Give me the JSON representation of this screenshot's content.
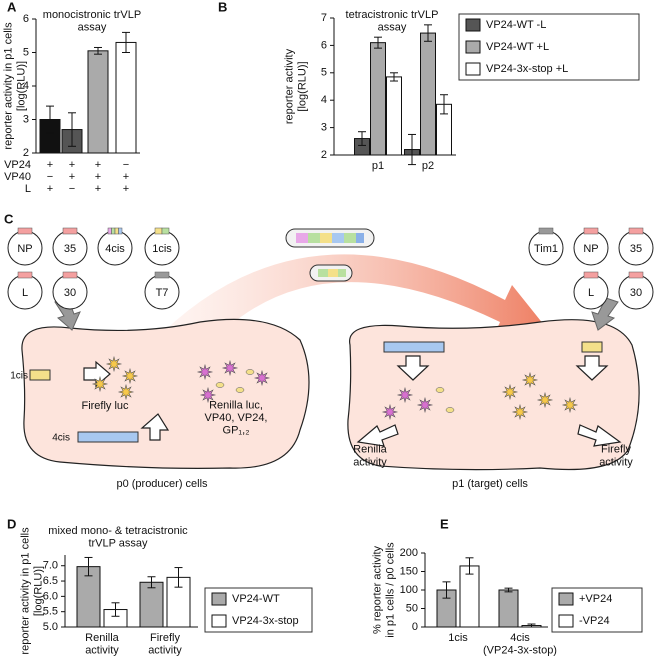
{
  "panels": [
    "A",
    "B",
    "C",
    "D",
    "E"
  ],
  "chart_data": [
    {
      "type": "bar",
      "title": "monocistronic trVLP\nassay",
      "ylabel": "reporter activity in p1 cells\n[log(RLU)]",
      "values": [
        3.0,
        2.7,
        5.05,
        5.3
      ],
      "errors": [
        0.4,
        0.5,
        0.1,
        0.3
      ],
      "colors": [
        "#111111",
        "#555555",
        "#aaaaaa",
        "#ffffff"
      ],
      "conditions": {
        "rows": [
          "VP24",
          "VP40",
          "L"
        ],
        "values": [
          [
            "+",
            "+",
            "+",
            "−"
          ],
          [
            "−",
            "+",
            "+",
            "+"
          ],
          [
            "+",
            "−",
            "+",
            "+"
          ]
        ]
      },
      "ylim": [
        2,
        6
      ],
      "yticks": [
        2,
        3,
        4,
        5,
        6
      ]
    },
    {
      "type": "grouped_bar",
      "title": "tetracistronic trVLP\nassay",
      "ylabel": "reporter activity\n[log(RLU)]",
      "categories": [
        "p1",
        "p2"
      ],
      "series": [
        {
          "name": "VP24-WT -L",
          "color": "#555555",
          "values": [
            2.6,
            2.2
          ],
          "errors": [
            0.25,
            0.55
          ]
        },
        {
          "name": "VP24-WT +L",
          "color": "#aaaaaa",
          "values": [
            6.1,
            6.45
          ],
          "errors": [
            0.2,
            0.3
          ]
        },
        {
          "name": "VP24-3x-stop +L",
          "color": "#ffffff",
          "values": [
            4.85,
            3.85
          ],
          "errors": [
            0.15,
            0.35
          ]
        }
      ],
      "ylim": [
        2,
        7
      ],
      "yticks": [
        2,
        3,
        4,
        5,
        6,
        7
      ],
      "legend": "right"
    },
    {
      "type": "grouped_bar",
      "title": "mixed mono- & tetracistronic\ntrVLP assay",
      "ylabel": "reporter activity in p1 cells\n[log(RLU)]",
      "categories": [
        "Renilla\nactivity",
        "Firefly\nactivity"
      ],
      "series": [
        {
          "name": "VP24-WT",
          "color": "#aaaaaa",
          "values": [
            6.97,
            6.46
          ],
          "errors": [
            0.3,
            0.18
          ]
        },
        {
          "name": "VP24-3x-stop",
          "color": "#ffffff",
          "values": [
            5.57,
            6.62
          ],
          "errors": [
            0.22,
            0.32
          ]
        }
      ],
      "ylim": [
        5.0,
        7.35
      ],
      "yticks": [
        {
          "value": 5,
          "label": "5.0"
        },
        5.5,
        {
          "value": 6,
          "label": "6.0"
        },
        6.5,
        {
          "value": 7,
          "label": "7.0"
        }
      ],
      "legend": "right"
    },
    {
      "type": "grouped_bar",
      "ylabel": "% reporter activity\nin p1 cells / p0 cells",
      "categories": [
        "1cis",
        "4cis\n(VP24-3x-stop)"
      ],
      "series": [
        {
          "name": "+VP24",
          "color": "#aaaaaa",
          "values": [
            100,
            100
          ],
          "errors": [
            22,
            5
          ]
        },
        {
          "name": "-VP24",
          "color": "#ffffff",
          "values": [
            165,
            4
          ],
          "errors": [
            22,
            4
          ]
        }
      ],
      "ylim": [
        0,
        200
      ],
      "yticks": [
        0,
        50,
        100,
        150,
        200
      ],
      "legend": "right"
    }
  ],
  "diagram": {
    "plasmids_left": [
      "NP",
      "35",
      "4cis",
      "1cis",
      "L",
      "30",
      "T7"
    ],
    "plasmids_right": [
      "Tim1",
      "NP",
      "35",
      "L",
      "30"
    ],
    "construct_1cis": "1cis",
    "construct_4cis": "4cis",
    "firefly": "Firefly luc",
    "renilla": "Renilla luc,\nVP40, VP24,\nGP₁,₂",
    "p0": "p0 (producer) cells",
    "p1": "p1 (target) cells",
    "renilla_activity": "Renilla\nactivity",
    "firefly_activity": "Firefly\nactivity"
  }
}
